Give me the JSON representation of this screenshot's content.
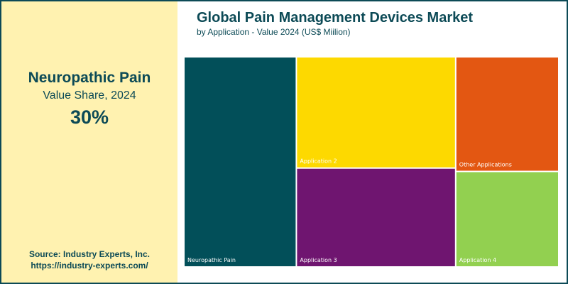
{
  "highlight": {
    "title": "Neuropathic Pain",
    "subtitle": "Value Share, 2024",
    "value": "30%"
  },
  "source": {
    "line1": "Source: Industry Experts, Inc.",
    "line2": "https://industry-experts.com/"
  },
  "chart_data": {
    "type": "treemap",
    "title": "Global Pain Management Devices Market",
    "subtitle": "by Application - Value 2024 (US$ Miilion)",
    "items": [
      {
        "name": "Neuropathic Pain",
        "share": 30,
        "color": "#024f59"
      },
      {
        "name": "Application 2",
        "share": 22.5,
        "color": "#fdd900"
      },
      {
        "name": "Application 3",
        "share": 20,
        "color": "#6f1570"
      },
      {
        "name": "Other Applications",
        "share": 15,
        "color": "#e35712"
      },
      {
        "name": "Application 4",
        "share": 12.5,
        "color": "#92d050"
      }
    ]
  }
}
